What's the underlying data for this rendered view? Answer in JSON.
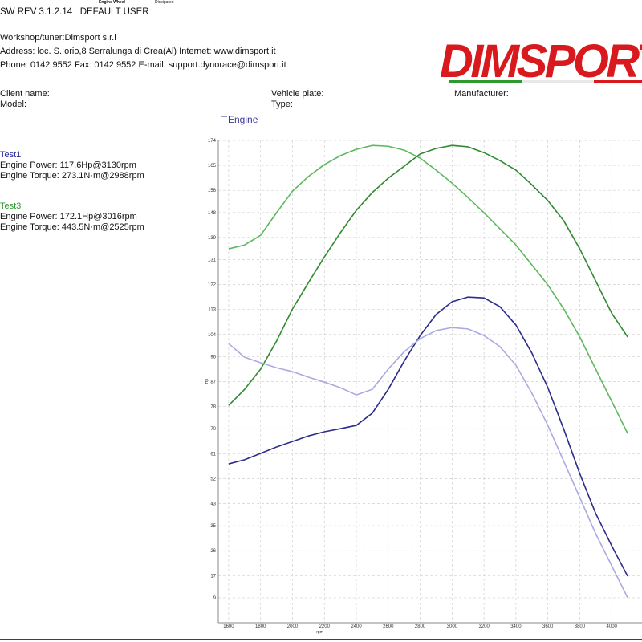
{
  "header": {
    "version": "SW REV 3.1.2.14   DEFAULT USER",
    "mode": "- Engine Wheel",
    "loss": "- Dissipated"
  },
  "workshop": [
    "Workshop/tuner:Dimsport s.r.l",
    "Address: loc. S.Iorio,8 Serralunga di Crea(Al) Internet: www.dimsport.it",
    "Phone: 0142 9552 Fax: 0142 9552 E-mail: support.dynorace@dimsport.it"
  ],
  "logo": "DIMSPORT",
  "vehicle": {
    "client": "Client name:",
    "model": "Model:",
    "plate": "Vehicle plate:",
    "type": "Type:",
    "manufacturer": "Manufacturer:"
  },
  "tests": [
    {
      "name": "Test1",
      "color": "#2a2a9a",
      "power": "Engine Power: 117.6Hp@3130rpm",
      "torque": "Engine Torque: 273.1N·m@2988rpm"
    },
    {
      "name": "Test3",
      "color": "#2e9a2e",
      "power": "Engine Power: 172.1Hp@3016rpm",
      "torque": "Engine Torque: 443.5N·m@2525rpm"
    }
  ],
  "chart_data": {
    "type": "line",
    "legend": "Engine",
    "legend_color": "#3a3a9a",
    "x_label": "rpm",
    "y_label": "Hp",
    "grid": true,
    "xlim": [
      1535,
      4190
    ],
    "ylim": [
      0,
      174
    ],
    "xticks": [
      1600,
      1800,
      2000,
      2200,
      2400,
      2600,
      2800,
      3000,
      3200,
      3400,
      3600,
      3800,
      4000
    ],
    "yticks": [
      9,
      17,
      26,
      35,
      43,
      52,
      61,
      70,
      78,
      87,
      96,
      104,
      113,
      122,
      131,
      139,
      148,
      156,
      165,
      174
    ],
    "x": [
      1600,
      1700,
      1800,
      1900,
      2000,
      2100,
      2200,
      2300,
      2400,
      2500,
      2600,
      2700,
      2800,
      2900,
      3000,
      3100,
      3200,
      3300,
      3400,
      3500,
      3600,
      3700,
      3800,
      3900,
      4000,
      4100
    ],
    "series": [
      {
        "color": "#5cb85c",
        "values": [
          134.9,
          136.3,
          139.8,
          147.9,
          155.7,
          161,
          165.3,
          168.5,
          170.8,
          172.2,
          171.9,
          170.5,
          167.6,
          163.3,
          158.6,
          153.4,
          147.9,
          142.1,
          136.3,
          129.1,
          121.9,
          113.2,
          103.1,
          91.5,
          79.9,
          68.3
        ]
      },
      {
        "color": "#2f8a2f",
        "values": [
          78.4,
          84.2,
          91.5,
          101.6,
          113.2,
          122.7,
          132,
          140.7,
          148.8,
          155.2,
          160.4,
          164.7,
          169.1,
          171.1,
          172.2,
          171.7,
          169.6,
          166.7,
          163.3,
          158,
          152.3,
          145,
          134.9,
          123.3,
          111.7,
          103.1
        ]
      },
      {
        "color": "#2c2c8c",
        "values": [
          57.3,
          58.8,
          61.1,
          63.4,
          65.4,
          67.4,
          68.9,
          70,
          71.2,
          75.6,
          84.2,
          94.4,
          103.6,
          111.2,
          115.8,
          117.5,
          117.2,
          114,
          107.4,
          97.3,
          84.8,
          69.8,
          53.8,
          39.4,
          27.8,
          16.8
        ]
      },
      {
        "color": "#aaaae2",
        "values": [
          100.7,
          95.8,
          93.8,
          92,
          90.6,
          88.6,
          86.8,
          84.8,
          82.2,
          84.2,
          91.5,
          97.8,
          102.5,
          105.4,
          106.5,
          106,
          103.6,
          99.6,
          92.9,
          82.8,
          71.2,
          58.2,
          45.2,
          32.1,
          20.6,
          9
        ]
      }
    ]
  }
}
